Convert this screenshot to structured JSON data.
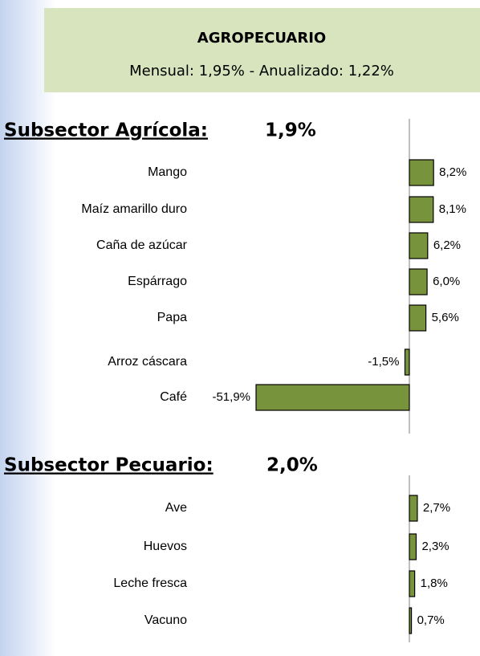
{
  "header": {
    "title": "AGROPECUARIO",
    "subtitle": "Mensual: 1,95%  -  Anualizado: 1,22%"
  },
  "chart_data": [
    {
      "type": "bar",
      "orientation": "horizontal",
      "title": "Subsector Agrícola:",
      "annotation": "1,9%",
      "categories": [
        "Mango",
        "Maíz amarillo duro",
        "Caña de azúcar",
        "Espárrago",
        "Papa",
        "Arroz cáscara",
        "Café"
      ],
      "values": [
        8.2,
        8.1,
        6.2,
        6.0,
        5.6,
        -1.5,
        -51.9
      ],
      "value_labels": [
        "8,2%",
        "8,1%",
        "6,2%",
        "6,0%",
        "5,6%",
        "-1,5%",
        "-51,9%"
      ],
      "color": "#77933c"
    },
    {
      "type": "bar",
      "orientation": "horizontal",
      "title": "Subsector Pecuario:",
      "annotation": "2,0%",
      "categories": [
        "Ave",
        "Huevos",
        "Leche fresca",
        "Vacuno"
      ],
      "values": [
        2.7,
        2.3,
        1.8,
        0.7
      ],
      "value_labels": [
        "2,7%",
        "2,3%",
        "1,8%",
        "0,7%"
      ],
      "color": "#77933c"
    }
  ]
}
